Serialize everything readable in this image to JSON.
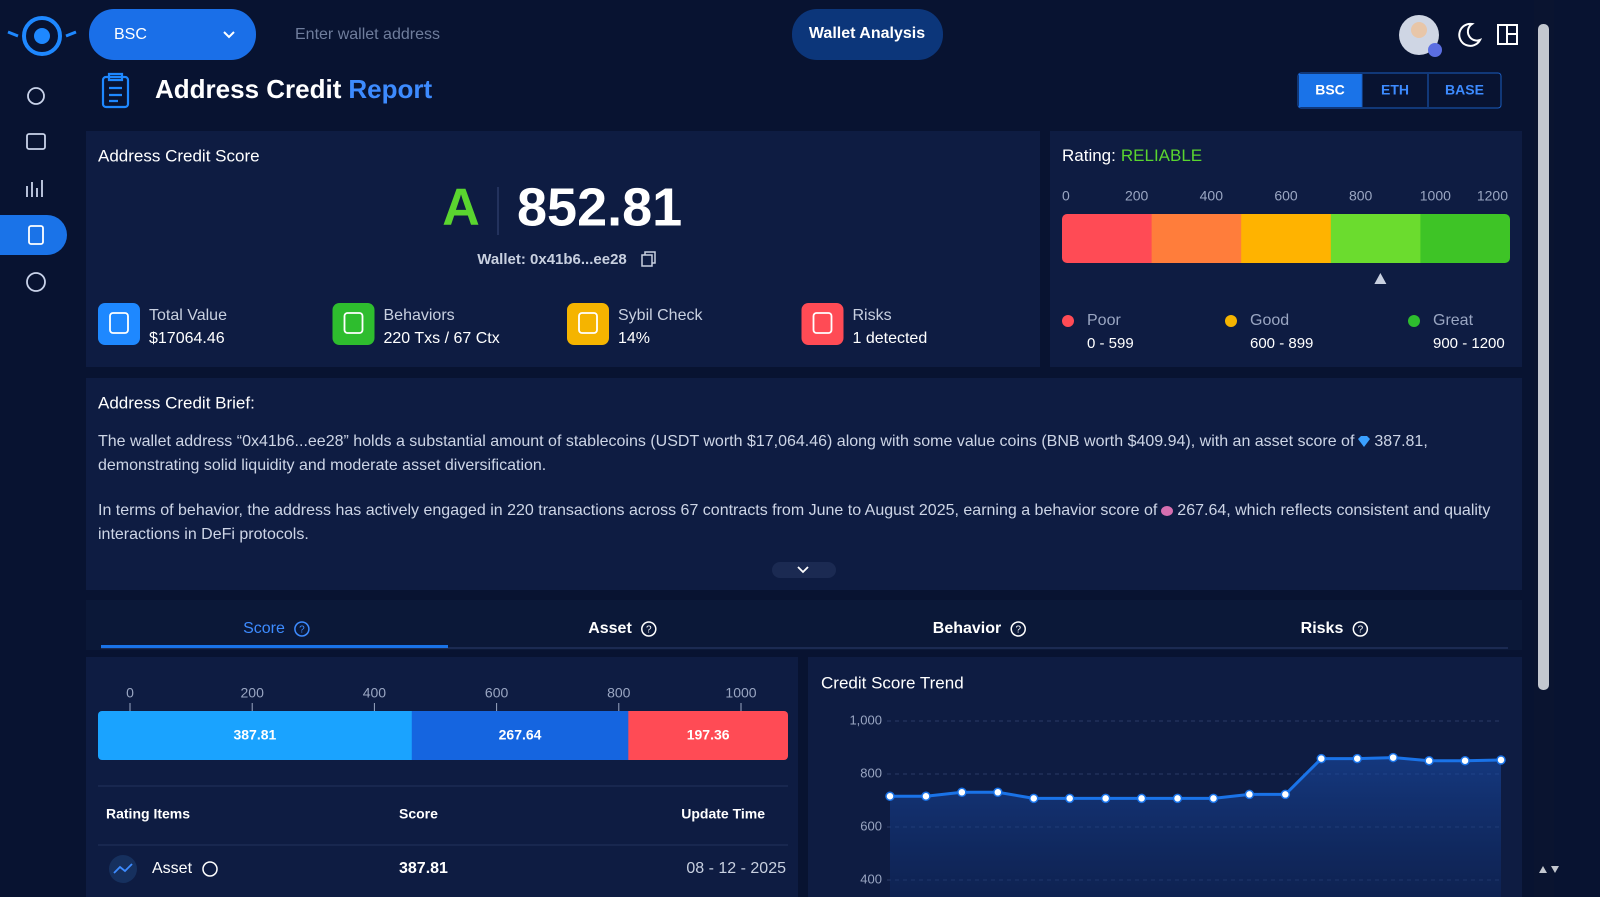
{
  "header": {
    "network": "BSC",
    "search_placeholder": "Enter wallet address",
    "analyze_button": "Wallet Analysis"
  },
  "page_title": {
    "main": "Address Credit",
    "accent": "Report"
  },
  "chain_tabs": {
    "items": [
      "BSC",
      "ETH",
      "BASE"
    ],
    "active": 0
  },
  "score_card": {
    "title": "Address Credit Score",
    "grade": "A",
    "score": 852.81,
    "wallet": "Wallet: 0x41b6...ee28",
    "stats": [
      {
        "label": "Total Value",
        "value": "$17064.46",
        "color": "#1e88ff"
      },
      {
        "label": "Behaviors",
        "value": "220 Txs / 67 Ctx",
        "color": "#2ebd2e"
      },
      {
        "label": "Sybil Check",
        "value": "14%",
        "color": "#f5b400"
      },
      {
        "label": "Risks",
        "value": "1 detected",
        "color": "#ff4b55"
      }
    ]
  },
  "rating": {
    "label": "Rating:",
    "value": "RELIABLE",
    "lim": [
      0,
      1200
    ],
    "ticks": [
      0,
      200,
      400,
      600,
      800,
      1000,
      1200
    ],
    "segment_colors": [
      "#ff4b55",
      "#ff7d3b",
      "#ffb300",
      "#6bdc2e",
      "#3ec426"
    ],
    "legend": [
      {
        "name": "Poor",
        "range": "0 - 599",
        "color": "#ff4b55"
      },
      {
        "name": "Good",
        "range": "600 - 899",
        "color": "#f5b400"
      },
      {
        "name": "Great",
        "range": "900 - 1200",
        "color": "#2ebd2e"
      }
    ]
  },
  "brief": {
    "title": "Address Credit Brief:",
    "paragraphs": [
      {
        "before": "The wallet address “0x41b6...ee28” holds a substantial amount of stablecoins (USDT worth $17,064.46) along with some value coins (BNB worth $409.94), with an asset score of",
        "after": "387.81, demonstrating solid liquidity and moderate asset diversification."
      },
      {
        "before": "In terms of behavior, the address has actively engaged in 220 transactions across 67 contracts from June to August 2025, earning a behavior score of",
        "after": "267.64, which reflects consistent and quality interactions in DeFi protocols."
      }
    ]
  },
  "tabs": {
    "items": [
      "Score",
      "Asset",
      "Behavior",
      "Risks"
    ],
    "active": 0
  },
  "score_breakdown": {
    "lim": [
      0,
      1000
    ],
    "ticks": [
      0,
      200,
      400,
      600,
      800,
      1000
    ],
    "segments": [
      {
        "value": 387.81,
        "color": "#1aa3ff"
      },
      {
        "value": 267.64,
        "color": "#1565e0"
      },
      {
        "value": 197.36,
        "color": "#ff4b55"
      }
    ]
  },
  "table": {
    "header": [
      "Rating Items",
      "Score",
      "Update Time"
    ],
    "rows": [
      [
        "Asset",
        387.81,
        "08 - 12 - 2025"
      ]
    ]
  },
  "chart_data": {
    "type": "line",
    "title": "Credit Score Trend",
    "color": "#1a73e8",
    "values": [
      716,
      716,
      731,
      731,
      708,
      708,
      708,
      708,
      708,
      708,
      723,
      723,
      858,
      858,
      862,
      850,
      850,
      853
    ],
    "ylim": [
      400,
      1000
    ],
    "yticks": [
      400,
      600,
      800,
      {
        "value": 1000,
        "label": "1,000"
      }
    ],
    "grid": true
  }
}
